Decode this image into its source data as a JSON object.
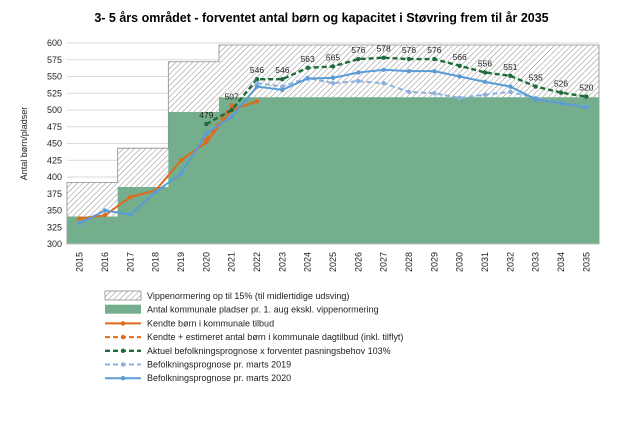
{
  "chart_data": {
    "type": "line",
    "title": "3- 5 års området - forventet antal børn og kapacitet i Støvring frem til år 2035",
    "xlabel": "",
    "ylabel": "Antal børn/pladser",
    "ylim": [
      300,
      600
    ],
    "yticks": [
      300,
      325,
      350,
      375,
      400,
      425,
      450,
      475,
      500,
      525,
      550,
      575,
      600
    ],
    "grid": true,
    "legend_position": "bottom",
    "categories": [
      "2015",
      "2016",
      "2017",
      "2018",
      "2019",
      "2020",
      "2021",
      "2022",
      "2023",
      "2024",
      "2025",
      "2026",
      "2027",
      "2028",
      "2029",
      "2030",
      "2031",
      "2032",
      "2033",
      "2034",
      "2035"
    ],
    "series": [
      {
        "name": "Vippenormering op til 15% (til midlertidige udsving)",
        "kind": "area-hatched",
        "color": "#9a9a9a",
        "values": [
          392,
          392,
          443,
          443,
          572,
          572,
          597,
          597,
          597,
          597,
          597,
          597,
          597,
          597,
          597,
          597,
          597,
          597,
          597,
          597,
          597
        ]
      },
      {
        "name": "Antal kommunale pladser pr. 1. aug ekskl. vippenormering",
        "kind": "area",
        "color": "#74ae8d",
        "values": [
          341,
          341,
          385,
          385,
          497,
          497,
          519,
          519,
          519,
          519,
          519,
          519,
          519,
          519,
          519,
          519,
          519,
          519,
          519,
          519,
          519
        ]
      },
      {
        "name": "Kendte børn i kommunale tilbud",
        "kind": "line",
        "color": "#e06a1b",
        "dash": "solid",
        "values": [
          338,
          343,
          370,
          380,
          425,
          452,
          500,
          513,
          null,
          null,
          null,
          null,
          null,
          null,
          null,
          null,
          null,
          null,
          null,
          null,
          null
        ]
      },
      {
        "name": "Kendte + estimeret antal børn i kommunale dagtilbud (inkl. tilflyt)",
        "kind": "line",
        "color": "#e06a1b",
        "dash": "dashed",
        "values": [
          null,
          null,
          null,
          null,
          null,
          456,
          507,
          null,
          null,
          null,
          null,
          null,
          null,
          null,
          null,
          null,
          null,
          null,
          null,
          null,
          null
        ],
        "labels": [
          null,
          null,
          null,
          null,
          null,
          null,
          507,
          null,
          null,
          null,
          null,
          null,
          null,
          null,
          null,
          null,
          null,
          null,
          null,
          null,
          null
        ]
      },
      {
        "name": "Aktuel befolkningsprognose x forventet pasningsbehov 103%",
        "kind": "line",
        "color": "#1f6b3a",
        "dash": "dashed",
        "values": [
          null,
          null,
          null,
          null,
          null,
          479,
          500,
          546,
          546,
          563,
          565,
          576,
          578,
          576,
          576,
          566,
          556,
          551,
          535,
          526,
          520
        ],
        "labels": [
          null,
          null,
          null,
          null,
          null,
          479,
          null,
          546,
          546,
          563,
          565,
          576,
          578,
          576,
          576,
          566,
          556,
          551,
          535,
          526,
          520
        ]
      },
      {
        "name": "Befolkningsprognose pr. marts 2019",
        "kind": "line",
        "color": "#8ab2dc",
        "dash": "dashed",
        "values": [
          null,
          null,
          null,
          null,
          null,
          null,
          null,
          540,
          535,
          548,
          540,
          543,
          540,
          527,
          525,
          518,
          523,
          527,
          518,
          510,
          505
        ]
      },
      {
        "name": "Befolkningsprognose pr. marts 2020",
        "kind": "line",
        "color": "#5b9bd5",
        "dash": "solid",
        "values": [
          331,
          350,
          344,
          378,
          405,
          465,
          490,
          535,
          530,
          547,
          548,
          556,
          560,
          558,
          558,
          550,
          542,
          535,
          516,
          510,
          504
        ]
      }
    ]
  }
}
